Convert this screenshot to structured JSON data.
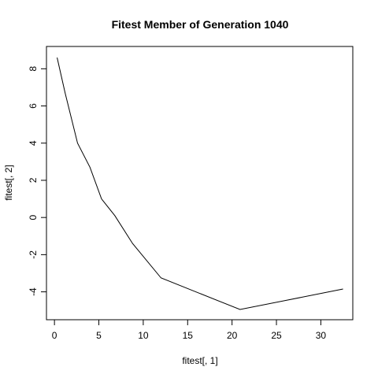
{
  "chart_data": {
    "type": "line",
    "title": "Fitest Member of Generation 1040",
    "xlabel": "fitest[, 1]",
    "ylabel": "fitest[, 2]",
    "xlim": [
      -0.9,
      33.6
    ],
    "ylim": [
      -5.5,
      9.2
    ],
    "xticks": [
      0,
      5,
      10,
      15,
      20,
      25,
      30
    ],
    "yticks": [
      -4,
      -2,
      0,
      2,
      4,
      6,
      8
    ],
    "grid": false,
    "series": [
      {
        "x": [
          0.3,
          1.2,
          2.6,
          4.0,
          5.3,
          6.8,
          8.8,
          12.0,
          20.9,
          32.5
        ],
        "y": [
          8.6,
          6.7,
          4.0,
          2.7,
          1.0,
          0.1,
          -1.4,
          -3.25,
          -4.95,
          -3.85
        ]
      }
    ]
  }
}
